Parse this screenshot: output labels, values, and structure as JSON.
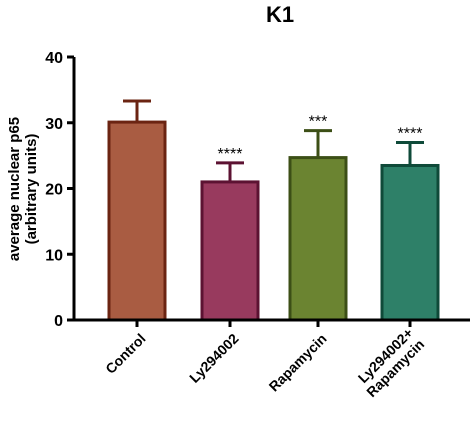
{
  "chart_data": {
    "type": "bar",
    "title": "K1",
    "ylabel_line1": "average nuclear p65",
    "ylabel_line2": "(arbitrary units)",
    "xlabel": "",
    "ylim": [
      0,
      40
    ],
    "yticks": [
      "0",
      "10",
      "20",
      "30",
      "40"
    ],
    "grid": false,
    "categories": [
      {
        "lines": [
          "Control"
        ]
      },
      {
        "lines": [
          "Ly294002"
        ]
      },
      {
        "lines": [
          "Rapamycin"
        ]
      },
      {
        "lines": [
          "Ly294002+",
          "Rapamycin"
        ]
      }
    ],
    "values": [
      30.1,
      21.0,
      24.7,
      23.5
    ],
    "errors": [
      3.2,
      2.9,
      4.1,
      3.5
    ],
    "significance": [
      "",
      "****",
      "***",
      "****"
    ],
    "colors": {
      "fill": [
        "#a95c42",
        "#983a5e",
        "#6b8431",
        "#2e8068"
      ],
      "stroke": [
        "#6b2412",
        "#5c1232",
        "#3c4f16",
        "#0f4a39"
      ]
    }
  }
}
